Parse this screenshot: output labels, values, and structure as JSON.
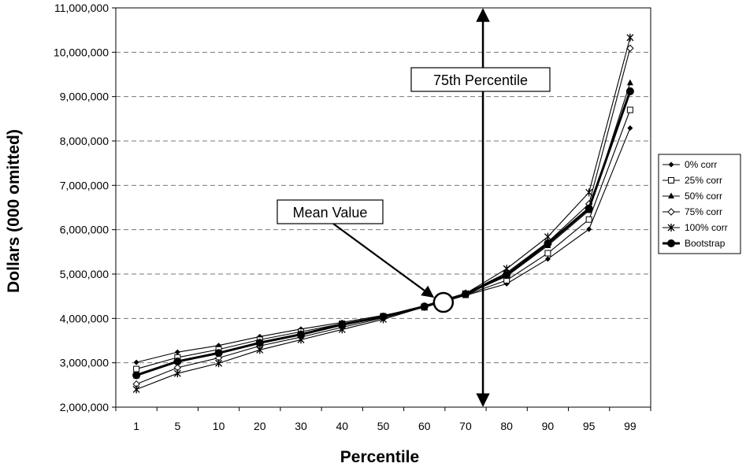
{
  "chart_data": {
    "type": "line",
    "title": "",
    "xlabel": "Percentile",
    "ylabel": "Dollars (000 omitted)",
    "categories": [
      "1",
      "5",
      "10",
      "20",
      "30",
      "40",
      "50",
      "60",
      "70",
      "80",
      "90",
      "95",
      "99"
    ],
    "y_tick_labels": [
      "2,000,000",
      "3,000,000",
      "4,000,000",
      "5,000,000",
      "6,000,000",
      "7,000,000",
      "8,000,000",
      "9,000,000",
      "10,000,000",
      "11,000,000"
    ],
    "ylim": [
      2000000,
      11000000
    ],
    "grid": "horizontal dashed",
    "legend_position": "right",
    "series": [
      {
        "name": "0% corr",
        "marker": "diamond-small",
        "values": [
          3010000,
          3240000,
          3390000,
          3590000,
          3760000,
          3910000,
          4070000,
          4250000,
          4520000,
          4780000,
          5340000,
          6010000,
          8290000
        ]
      },
      {
        "name": "25% corr",
        "marker": "square-open",
        "values": [
          2860000,
          3120000,
          3300000,
          3520000,
          3700000,
          3880000,
          4050000,
          4250000,
          4530000,
          4860000,
          5470000,
          6230000,
          8700000
        ]
      },
      {
        "name": "50% corr",
        "marker": "triangle",
        "values": [
          2700000,
          3030000,
          3210000,
          3470000,
          3650000,
          3850000,
          4040000,
          4270000,
          4550000,
          4950000,
          5640000,
          6430000,
          9310000
        ]
      },
      {
        "name": "75% corr",
        "marker": "diamond-open",
        "values": [
          2520000,
          2890000,
          3110000,
          3380000,
          3580000,
          3800000,
          4010000,
          4260000,
          4560000,
          5030000,
          5720000,
          6580000,
          10090000
        ]
      },
      {
        "name": "100% corr",
        "marker": "star",
        "values": [
          2400000,
          2760000,
          2990000,
          3290000,
          3520000,
          3750000,
          3980000,
          4260000,
          4560000,
          5120000,
          5840000,
          6840000,
          10330000
        ]
      },
      {
        "name": "Bootstrap",
        "marker": "circle-filled",
        "values": [
          2720000,
          3030000,
          3220000,
          3450000,
          3640000,
          3860000,
          4040000,
          4270000,
          4550000,
          4980000,
          5690000,
          6480000,
          9120000
        ]
      }
    ],
    "annotations": [
      {
        "text": "Mean Value",
        "target_percentile_between": [
          "60",
          "70"
        ],
        "target_value": 4360000
      },
      {
        "text": "75th Percentile",
        "percentile_between": [
          "70",
          "80"
        ]
      }
    ]
  }
}
